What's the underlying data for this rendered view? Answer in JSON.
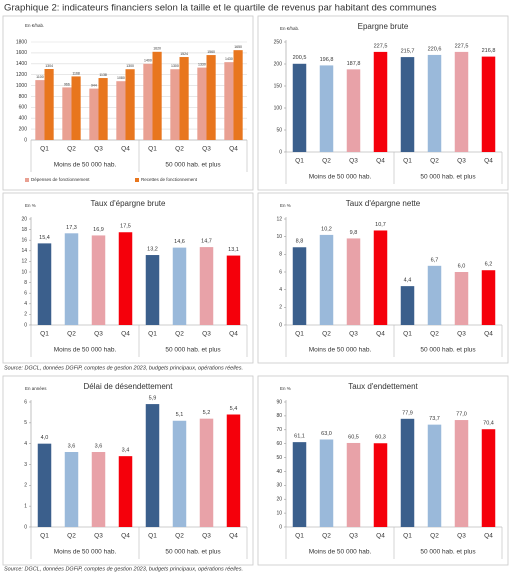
{
  "title": "Graphique 2: indicateurs financiers selon la taille et le quartile de revenus par habitant des communes",
  "sources": [
    "Source: DGCL, données DGFiP, comptes de gestion 2023, budgets principaux, opérations réelles.",
    "Source: DGCL, données DGFiP, comptes de gestion 2023, budgets principaux, opérations réelles."
  ],
  "chart_data": [
    {
      "type": "bar",
      "unit": "En €/hab.",
      "categories": [
        "Q1",
        "Q2",
        "Q3",
        "Q4",
        "Q1",
        "Q2",
        "Q3",
        "Q4"
      ],
      "groups": [
        "Moins de 50 000 hab.",
        "50 000 hab. et plus"
      ],
      "series": [
        {
          "name": "Dépenses de fonctionnement",
          "color": "#e9a092",
          "values": [
            1100,
            966,
            944,
            1080,
            1400,
            1300,
            1330,
            1430
          ]
        },
        {
          "name": "Recettes de fonctionnement",
          "color": "#e8761e",
          "values": [
            1304,
            1168,
            1138,
            1300,
            1620,
            1524,
            1560,
            1650
          ]
        }
      ],
      "ylim": [
        0,
        1800
      ],
      "yticks": [
        0,
        200,
        400,
        600,
        800,
        1000,
        1200,
        1400,
        1600,
        1800
      ],
      "grid": true,
      "legend": "bottom"
    },
    {
      "type": "bar",
      "title": "Epargne brute",
      "unit": "En €/hab.",
      "categories": [
        "Q1",
        "Q2",
        "Q3",
        "Q4",
        "Q1",
        "Q2",
        "Q3",
        "Q4"
      ],
      "groups": [
        "Moins de 50 000 hab.",
        "50 000 hab. et plus"
      ],
      "values": [
        200.5,
        196.8,
        187.8,
        227.5,
        215.7,
        220.6,
        227.5,
        216.8
      ],
      "value_labels": [
        "200,5",
        "196,8",
        "187,8",
        "227,5",
        "215,7",
        "220,6",
        "227,5",
        "216,8"
      ],
      "colors": [
        "#3b5f8c",
        "#9ab9da",
        "#e8a2a8",
        "#f5000b",
        "#3b5f8c",
        "#9ab9da",
        "#e8a2a8",
        "#f5000b"
      ],
      "ylim": [
        0,
        250
      ],
      "yticks": [
        0,
        50,
        100,
        150,
        200,
        250
      ],
      "grid": false
    },
    {
      "type": "bar",
      "title": "Taux d'épargne brute",
      "unit": "En %",
      "categories": [
        "Q1",
        "Q2",
        "Q3",
        "Q4",
        "Q1",
        "Q2",
        "Q3",
        "Q4"
      ],
      "groups": [
        "Moins de 50 000 hab.",
        "50 000 hab. et plus"
      ],
      "values": [
        15.4,
        17.3,
        16.9,
        17.5,
        13.2,
        14.6,
        14.7,
        13.1
      ],
      "value_labels": [
        "15,4",
        "17,3",
        "16,9",
        "17,5",
        "13,2",
        "14,6",
        "14,7",
        "13,1"
      ],
      "colors": [
        "#3b5f8c",
        "#9ab9da",
        "#e8a2a8",
        "#f5000b",
        "#3b5f8c",
        "#9ab9da",
        "#e8a2a8",
        "#f5000b"
      ],
      "ylim": [
        0,
        20
      ],
      "yticks": [
        0,
        2,
        4,
        6,
        8,
        10,
        12,
        14,
        16,
        18,
        20
      ],
      "grid": false
    },
    {
      "type": "bar",
      "title": "Taux d'épargne nette",
      "unit": "En %",
      "categories": [
        "Q1",
        "Q2",
        "Q3",
        "Q4",
        "Q1",
        "Q2",
        "Q3",
        "Q4"
      ],
      "groups": [
        "Moins de 50 000 hab.",
        "50 000 hab. et plus"
      ],
      "values": [
        8.8,
        10.2,
        9.8,
        10.7,
        4.4,
        6.7,
        6.0,
        6.2
      ],
      "value_labels": [
        "8,8",
        "10,2",
        "9,8",
        "10,7",
        "4,4",
        "6,7",
        "6,0",
        "6,2"
      ],
      "colors": [
        "#3b5f8c",
        "#9ab9da",
        "#e8a2a8",
        "#f5000b",
        "#3b5f8c",
        "#9ab9da",
        "#e8a2a8",
        "#f5000b"
      ],
      "ylim": [
        0,
        12
      ],
      "yticks": [
        0,
        2,
        4,
        6,
        8,
        10,
        12
      ],
      "grid": false
    },
    {
      "type": "bar",
      "title": "Délai de désendettement",
      "unit": "En années",
      "categories": [
        "Q1",
        "Q2",
        "Q3",
        "Q4",
        "Q1",
        "Q2",
        "Q3",
        "Q4"
      ],
      "groups": [
        "Moins de 50 000 hab.",
        "50 000 hab. et plus"
      ],
      "values": [
        4.0,
        3.6,
        3.6,
        3.4,
        5.9,
        5.1,
        5.2,
        5.4
      ],
      "value_labels": [
        "4,0",
        "3,6",
        "3,6",
        "3,4",
        "5,9",
        "5,1",
        "5,2",
        "5,4"
      ],
      "colors": [
        "#3b5f8c",
        "#9ab9da",
        "#e8a2a8",
        "#f5000b",
        "#3b5f8c",
        "#9ab9da",
        "#e8a2a8",
        "#f5000b"
      ],
      "ylim": [
        0,
        6
      ],
      "yticks": [
        0,
        1,
        2,
        3,
        4,
        5,
        6
      ],
      "grid": false
    },
    {
      "type": "bar",
      "title": "Taux d'endettement",
      "unit": "En %",
      "categories": [
        "Q1",
        "Q2",
        "Q3",
        "Q4",
        "Q1",
        "Q2",
        "Q3",
        "Q4"
      ],
      "groups": [
        "Moins de 50 000 hab.",
        "50 000 hab. et plus"
      ],
      "values": [
        61.1,
        63.0,
        60.5,
        60.3,
        77.9,
        73.7,
        77.0,
        70.4
      ],
      "value_labels": [
        "61,1",
        "63,0",
        "60,5",
        "60,3",
        "77,9",
        "73,7",
        "77,0",
        "70,4"
      ],
      "colors": [
        "#3b5f8c",
        "#9ab9da",
        "#e8a2a8",
        "#f5000b",
        "#3b5f8c",
        "#9ab9da",
        "#e8a2a8",
        "#f5000b"
      ],
      "ylim": [
        0,
        90
      ],
      "yticks": [
        0,
        10,
        20,
        30,
        40,
        50,
        60,
        70,
        80,
        90
      ],
      "grid": false
    }
  ]
}
